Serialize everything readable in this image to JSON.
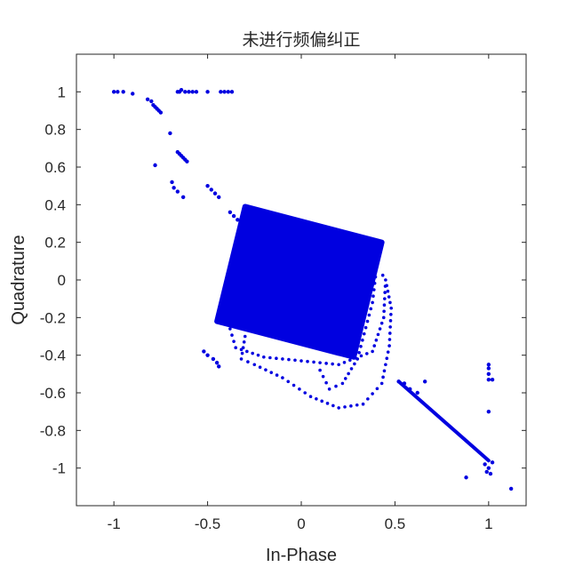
{
  "chart_data": {
    "type": "scatter",
    "title": "未进行频偏纠正",
    "xlabel": "In-Phase",
    "ylabel": "Quadrature",
    "xlim": [
      -1.2,
      1.2
    ],
    "ylim": [
      -1.2,
      1.2
    ],
    "xticks": [
      -1,
      -0.5,
      0,
      0.5,
      1
    ],
    "xtick_labels": [
      "-1",
      "-0.5",
      "0",
      "0.5",
      "1"
    ],
    "yticks": [
      1,
      0.8,
      0.6,
      0.4,
      0.2,
      0,
      -0.2,
      -0.4,
      -0.6,
      -0.8,
      -1
    ],
    "ytick_labels": [
      "1",
      "0.8",
      "0.6",
      "0.4",
      "0.2",
      "0",
      "-0.2",
      "-0.4",
      "-0.6",
      "-0.8",
      "-1"
    ],
    "grid": false,
    "marker_color": "#0000E0",
    "cluster": {
      "description_points": "dense square cloud rotated slightly, centered near (0.07, 0.0)",
      "corners": [
        [
          -0.3,
          0.39
        ],
        [
          0.43,
          0.2
        ],
        [
          0.28,
          -0.41
        ],
        [
          -0.45,
          -0.22
        ]
      ]
    },
    "series": [
      {
        "points": [
          [
            -1.0,
            1.0
          ],
          [
            -0.98,
            1.0
          ],
          [
            -0.95,
            1.0
          ],
          [
            -0.9,
            0.99
          ],
          [
            -0.82,
            0.96
          ],
          [
            -0.8,
            0.95
          ],
          [
            -0.79,
            0.93
          ],
          [
            -0.78,
            0.92
          ],
          [
            -0.77,
            0.91
          ],
          [
            -0.76,
            0.9
          ],
          [
            -0.75,
            0.89
          ],
          [
            -0.7,
            0.78
          ],
          [
            -0.78,
            0.61
          ],
          [
            -0.66,
            0.68
          ],
          [
            -0.65,
            0.67
          ],
          [
            -0.64,
            0.66
          ],
          [
            -0.63,
            0.65
          ],
          [
            -0.62,
            0.64
          ],
          [
            -0.61,
            0.63
          ],
          [
            -0.69,
            0.52
          ],
          [
            -0.68,
            0.49
          ],
          [
            -0.66,
            0.47
          ],
          [
            -0.63,
            0.44
          ],
          [
            -0.66,
            1.0
          ],
          [
            -0.65,
            1.0
          ],
          [
            -0.64,
            1.01
          ],
          [
            -0.62,
            1.0
          ],
          [
            -0.6,
            1.0
          ],
          [
            -0.58,
            1.0
          ],
          [
            -0.56,
            1.0
          ],
          [
            -0.5,
            1.0
          ],
          [
            -0.43,
            1.0
          ],
          [
            -0.41,
            1.0
          ],
          [
            -0.39,
            1.0
          ],
          [
            -0.37,
            1.0
          ],
          [
            -0.5,
            0.5
          ],
          [
            -0.48,
            0.48
          ],
          [
            -0.46,
            0.46
          ],
          [
            -0.44,
            0.44
          ],
          [
            -0.38,
            0.36
          ],
          [
            -0.36,
            0.34
          ],
          [
            -0.34,
            0.32
          ],
          [
            -0.52,
            -0.38
          ],
          [
            -0.5,
            -0.4
          ],
          [
            -0.47,
            -0.42
          ],
          [
            -0.45,
            -0.44
          ],
          [
            -0.44,
            -0.46
          ],
          [
            0.52,
            -0.54
          ],
          [
            0.55,
            -0.55
          ],
          [
            0.58,
            -0.58
          ],
          [
            0.62,
            -0.6
          ],
          [
            0.66,
            -0.54
          ],
          [
            1.0,
            -0.45
          ],
          [
            1.0,
            -0.47
          ],
          [
            1.0,
            -0.5
          ],
          [
            1.0,
            -0.53
          ],
          [
            1.02,
            -0.53
          ],
          [
            1.0,
            -0.7
          ],
          [
            0.98,
            -0.98
          ],
          [
            1.0,
            -1.0
          ],
          [
            1.02,
            -0.97
          ],
          [
            0.99,
            -1.02
          ],
          [
            1.01,
            -1.03
          ],
          [
            0.88,
            -1.05
          ],
          [
            1.12,
            -1.11
          ]
        ],
        "line_segments": [
          {
            "from": [
              0.52,
              -0.54
            ],
            "to": [
              1.0,
              -0.96
            ]
          }
        ],
        "loops": [
          {
            "points": [
              [
                -0.3,
                -0.3
              ],
              [
                -0.32,
                -0.42
              ],
              [
                -0.25,
                -0.45
              ],
              [
                -0.1,
                -0.52
              ],
              [
                0.05,
                -0.62
              ],
              [
                0.2,
                -0.68
              ],
              [
                0.33,
                -0.66
              ],
              [
                0.43,
                -0.55
              ],
              [
                0.47,
                -0.35
              ],
              [
                0.48,
                -0.15
              ],
              [
                0.45,
                0.0
              ],
              [
                0.42,
                0.05
              ]
            ]
          },
          {
            "points": [
              [
                -0.38,
                -0.26
              ],
              [
                -0.35,
                -0.36
              ],
              [
                -0.2,
                -0.41
              ],
              [
                0.0,
                -0.43
              ],
              [
                0.2,
                -0.45
              ],
              [
                0.38,
                -0.38
              ],
              [
                0.44,
                -0.2
              ],
              [
                0.45,
                0.0
              ]
            ]
          },
          {
            "points": [
              [
                0.1,
                -0.48
              ],
              [
                0.15,
                -0.58
              ],
              [
                0.22,
                -0.55
              ],
              [
                0.3,
                -0.42
              ],
              [
                0.38,
                -0.12
              ],
              [
                0.4,
                0.05
              ]
            ]
          }
        ]
      }
    ]
  }
}
